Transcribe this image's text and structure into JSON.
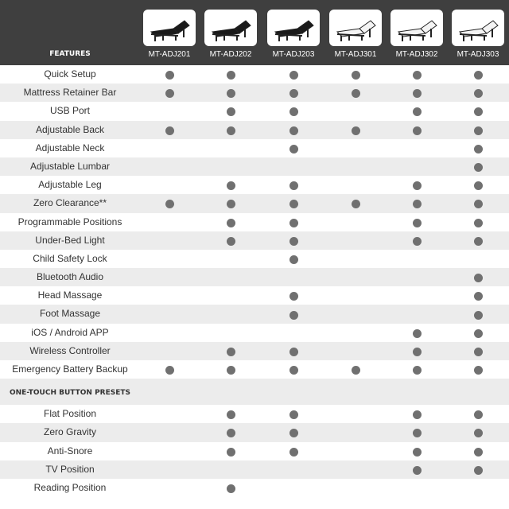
{
  "header": {
    "features_label": "FEATURES",
    "models": [
      "MT-ADJ201",
      "MT-ADJ202",
      "MT-ADJ203",
      "MT-ADJ301",
      "MT-ADJ302",
      "MT-ADJ303"
    ],
    "bed_colors": [
      "black",
      "black",
      "black",
      "white",
      "white",
      "white"
    ]
  },
  "features": [
    {
      "label": "Quick Setup",
      "has": [
        1,
        1,
        1,
        1,
        1,
        1
      ]
    },
    {
      "label": "Mattress Retainer Bar",
      "has": [
        1,
        1,
        1,
        1,
        1,
        1
      ]
    },
    {
      "label": "USB Port",
      "has": [
        0,
        1,
        1,
        0,
        1,
        1
      ]
    },
    {
      "label": "Adjustable Back",
      "has": [
        1,
        1,
        1,
        1,
        1,
        1
      ]
    },
    {
      "label": "Adjustable Neck",
      "has": [
        0,
        0,
        1,
        0,
        0,
        1
      ]
    },
    {
      "label": "Adjustable Lumbar",
      "has": [
        0,
        0,
        0,
        0,
        0,
        1
      ]
    },
    {
      "label": "Adjustable Leg",
      "has": [
        0,
        1,
        1,
        0,
        1,
        1
      ]
    },
    {
      "label": "Zero Clearance**",
      "has": [
        1,
        1,
        1,
        1,
        1,
        1
      ]
    },
    {
      "label": "Programmable Positions",
      "has": [
        0,
        1,
        1,
        0,
        1,
        1
      ]
    },
    {
      "label": "Under-Bed Light",
      "has": [
        0,
        1,
        1,
        0,
        1,
        1
      ]
    },
    {
      "label": "Child Safety Lock",
      "has": [
        0,
        0,
        1,
        0,
        0,
        0
      ]
    },
    {
      "label": "Bluetooth Audio",
      "has": [
        0,
        0,
        0,
        0,
        0,
        1
      ]
    },
    {
      "label": "Head Massage",
      "has": [
        0,
        0,
        1,
        0,
        0,
        1
      ]
    },
    {
      "label": "Foot Massage",
      "has": [
        0,
        0,
        1,
        0,
        0,
        1
      ]
    },
    {
      "label": "iOS / Android APP",
      "has": [
        0,
        0,
        0,
        0,
        1,
        1
      ]
    },
    {
      "label": "Wireless Controller",
      "has": [
        0,
        1,
        1,
        0,
        1,
        1
      ]
    },
    {
      "label": "Emergency Battery Backup",
      "has": [
        1,
        1,
        1,
        1,
        1,
        1
      ]
    }
  ],
  "presets_section": {
    "title": "ONE-TOUCH BUTTON PRESETS",
    "items": [
      {
        "label": "Flat Position",
        "has": [
          0,
          1,
          1,
          0,
          1,
          1
        ]
      },
      {
        "label": "Zero Gravity",
        "has": [
          0,
          1,
          1,
          0,
          1,
          1
        ]
      },
      {
        "label": "Anti-Snore",
        "has": [
          0,
          1,
          1,
          0,
          1,
          1
        ]
      },
      {
        "label": "TV Position",
        "has": [
          0,
          0,
          0,
          0,
          1,
          1
        ]
      },
      {
        "label": "Reading Position",
        "has": [
          0,
          1,
          0,
          0,
          0,
          0
        ]
      }
    ]
  },
  "colors": {
    "header_bg": "#3f3f3f",
    "dot": "#707070",
    "alt_row": "#ececec"
  }
}
